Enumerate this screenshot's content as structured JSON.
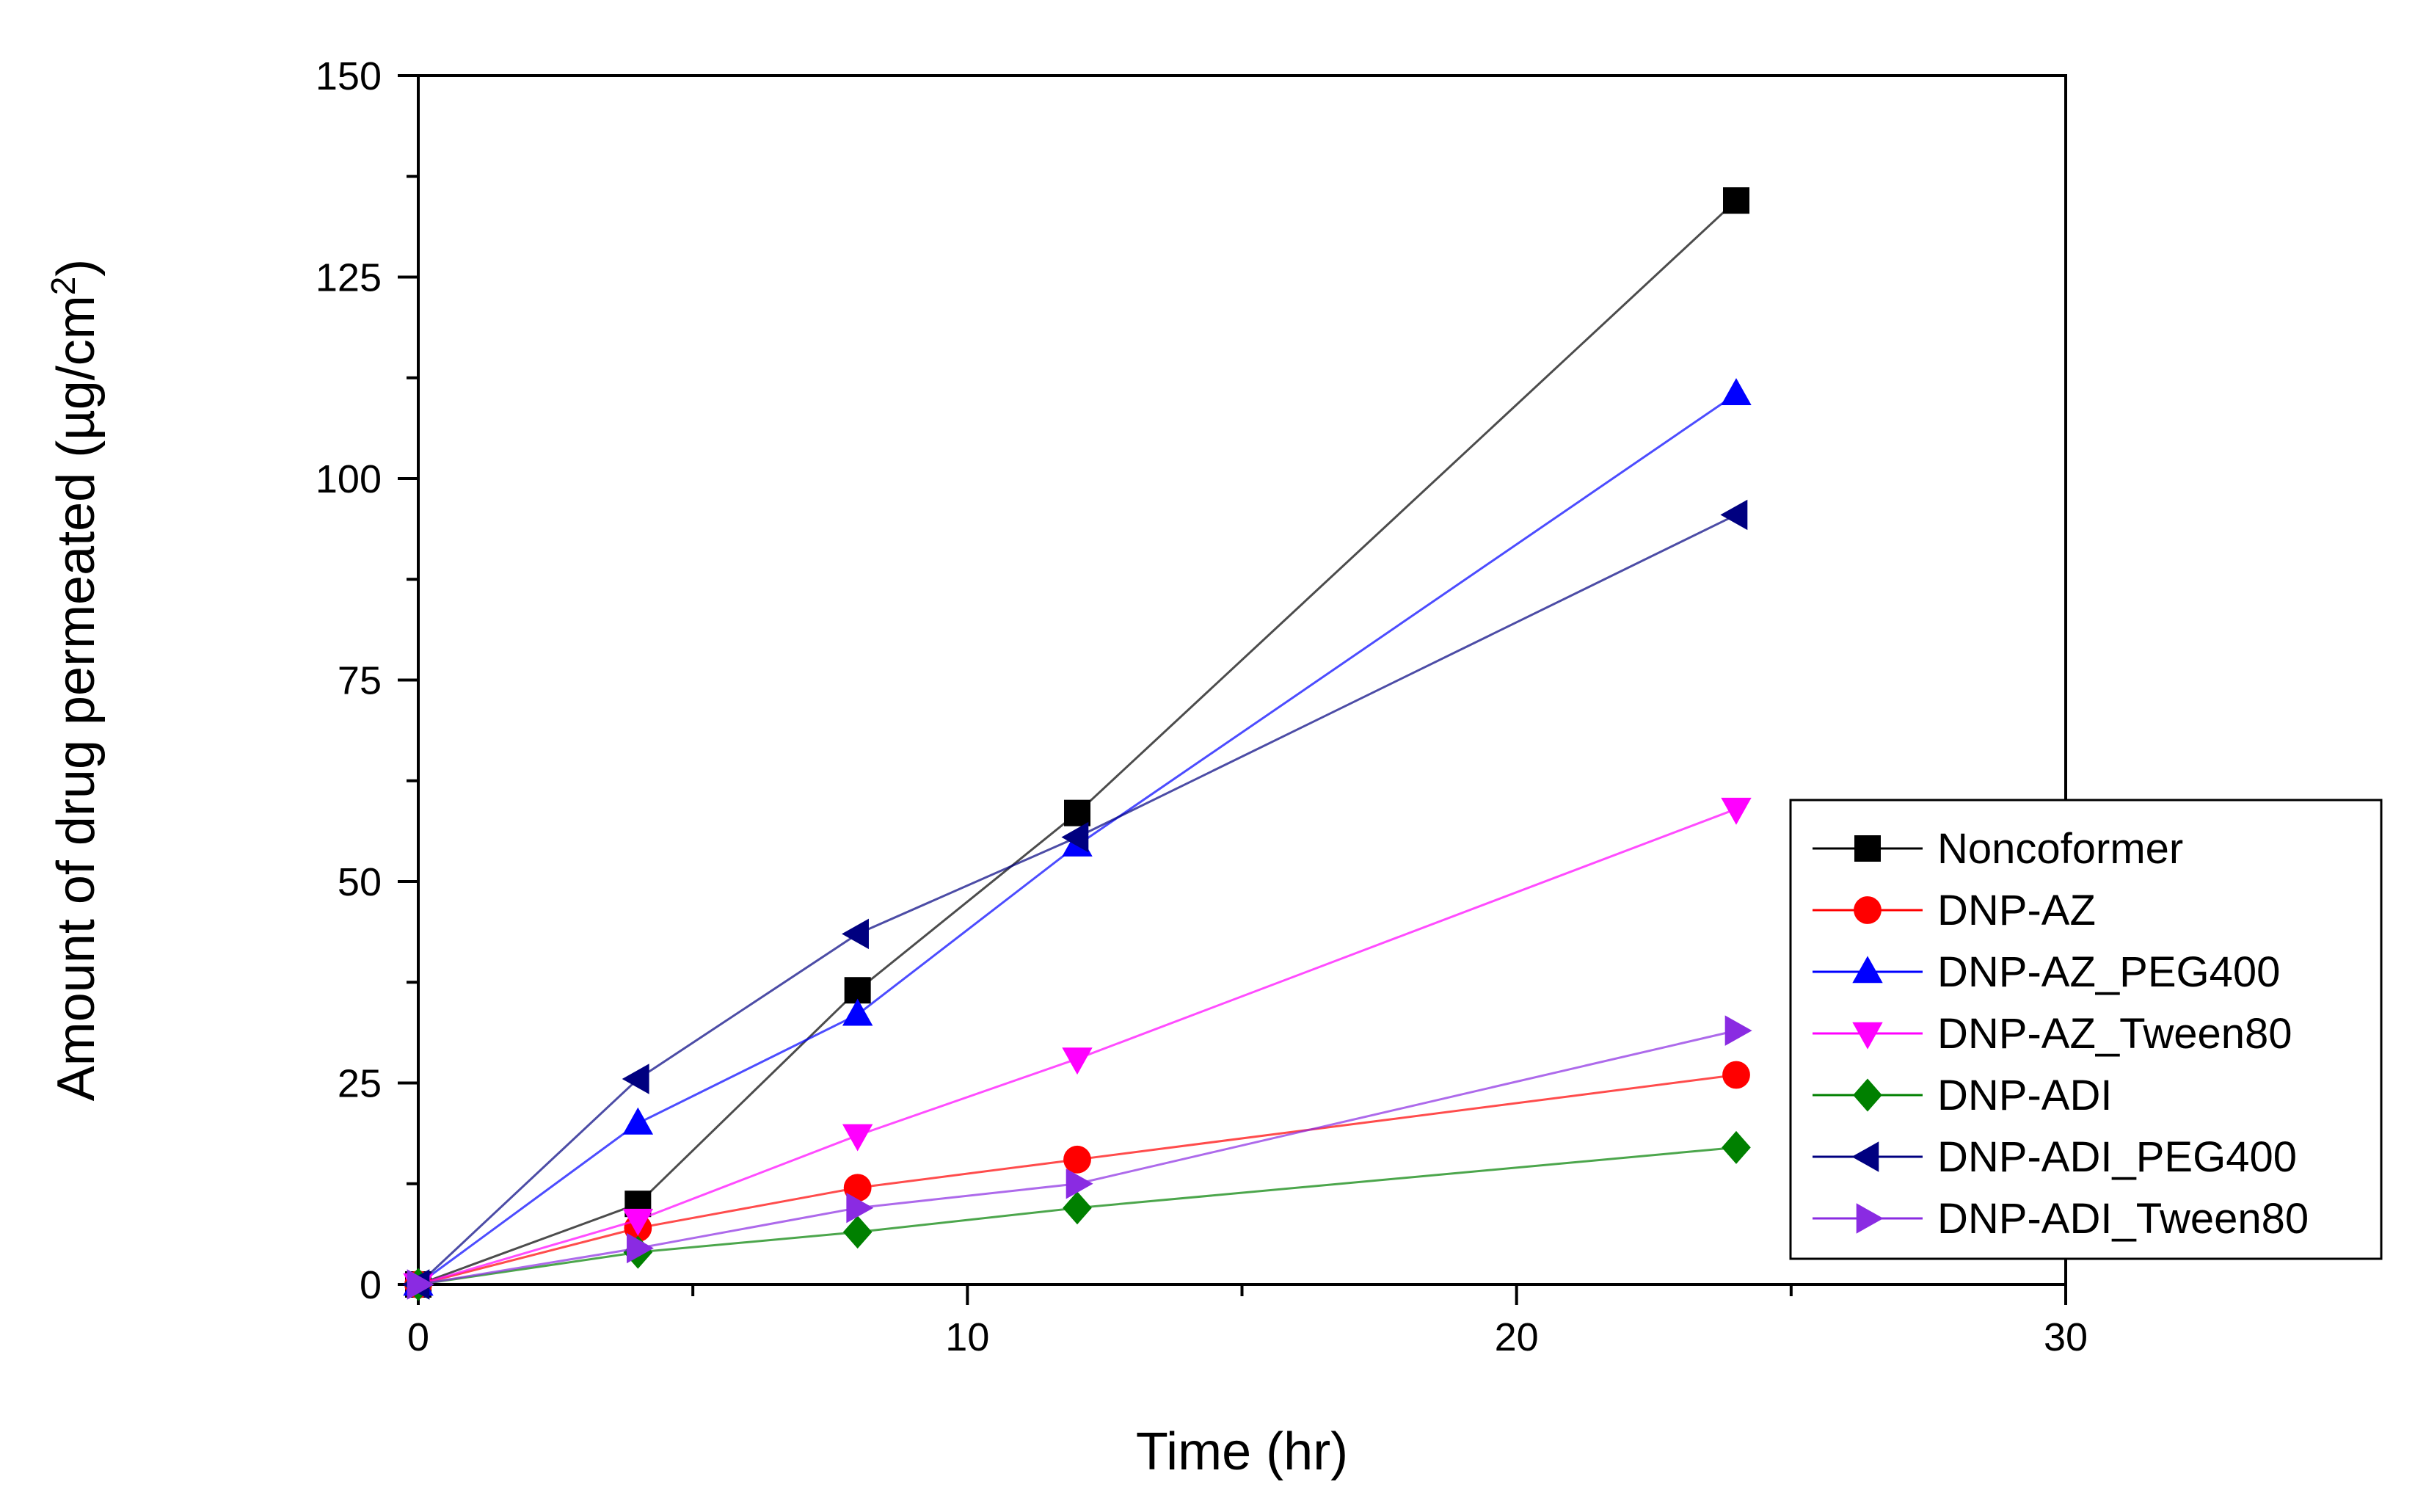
{
  "chart_data": {
    "type": "line",
    "title": "",
    "xlabel": "Time (hr)",
    "ylabel": "Amount of drug permeated (µg/cm",
    "ylabel_superscript": "2",
    "ylabel_close": ")",
    "xlim": [
      0,
      30
    ],
    "ylim": [
      0,
      150
    ],
    "xticks": [
      0,
      10,
      20,
      30
    ],
    "yticks": [
      0,
      25,
      50,
      75,
      100,
      125,
      150
    ],
    "xtick_labels": [
      "0",
      "10",
      "20",
      "30"
    ],
    "ytick_labels": [
      "0",
      "25",
      "50",
      "75",
      "100",
      "125",
      "150"
    ],
    "grid": false,
    "legend_position": "bottom-right",
    "x": [
      0,
      4,
      8,
      12,
      24
    ],
    "series": [
      {
        "name": "Noncoformer",
        "color": "#000000",
        "marker": "square",
        "values": [
          0,
          10,
          36.5,
          58.5,
          134.5
        ]
      },
      {
        "name": "DNP-AZ",
        "color": "#ff0000",
        "marker": "circle",
        "values": [
          0,
          7,
          12,
          15.5,
          26
        ]
      },
      {
        "name": "DNP-AZ_PEG400",
        "color": "#0000ff",
        "marker": "triangle-up",
        "values": [
          0,
          20,
          33.5,
          54.5,
          110.5
        ]
      },
      {
        "name": "DNP-AZ_Tween80",
        "color": "#ff00ff",
        "marker": "triangle-down",
        "values": [
          0,
          8,
          18.5,
          28,
          59
        ]
      },
      {
        "name": "DNP-ADI",
        "color": "#008000",
        "marker": "diamond",
        "values": [
          0,
          4,
          6.5,
          9.5,
          17
        ]
      },
      {
        "name": "DNP-ADI_PEG400",
        "color": "#000080",
        "marker": "triangle-left",
        "values": [
          0,
          25.5,
          43.5,
          55.5,
          95.5
        ]
      },
      {
        "name": "DNP-ADI_Tween80",
        "color": "#8a2be2",
        "marker": "triangle-right",
        "values": [
          0,
          4.5,
          9.5,
          12.5,
          31.5
        ]
      }
    ]
  }
}
